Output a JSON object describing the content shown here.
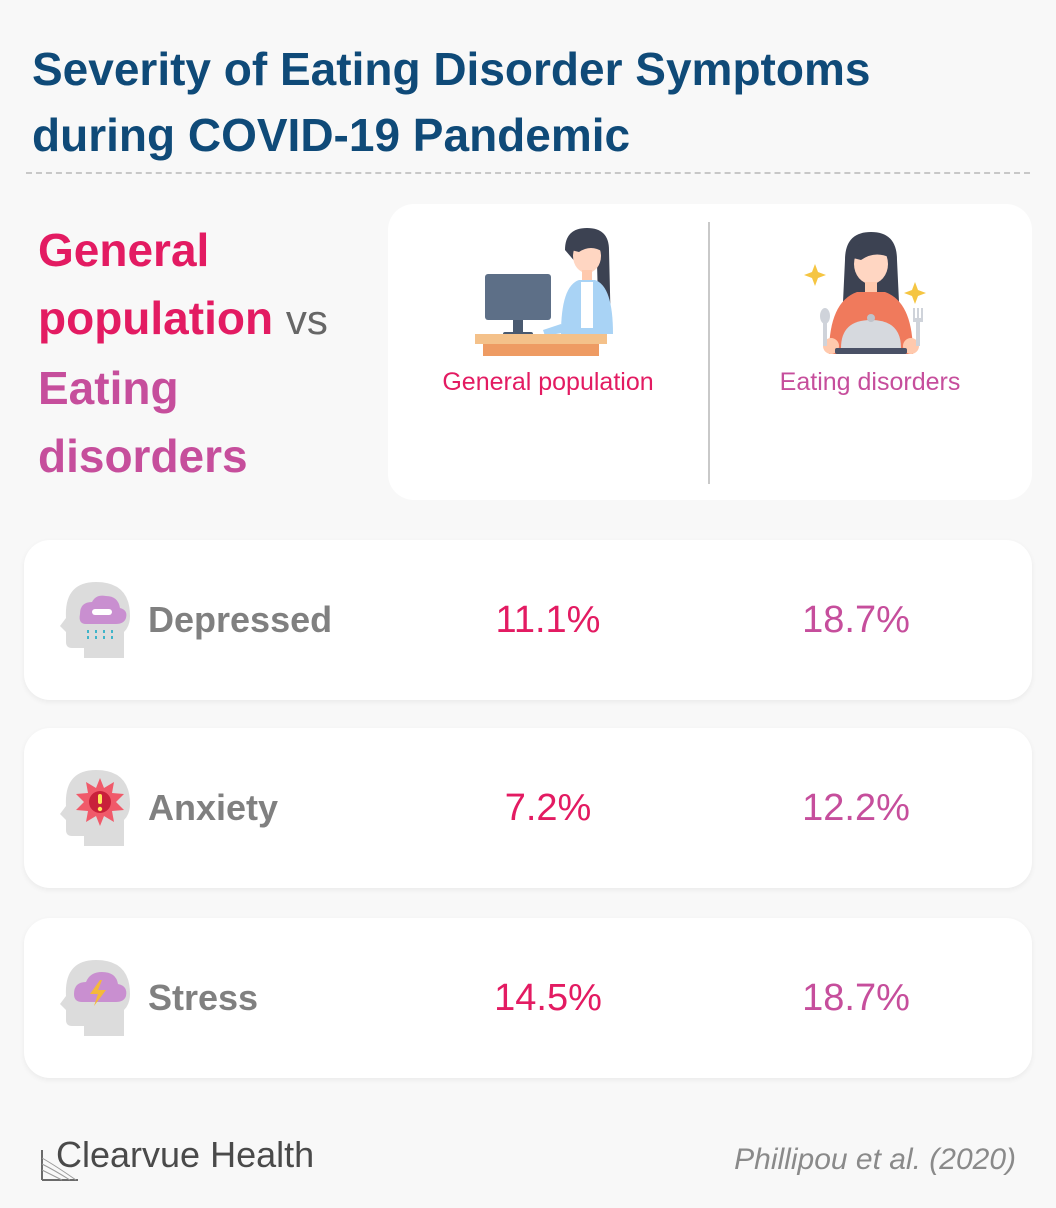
{
  "title": {
    "line1": "Severity of Eating Disorder Symptoms",
    "line2": "during COVID-19 Pandemic"
  },
  "headline": {
    "general": "General population",
    "vs": "vs",
    "eating": "Eating disorders"
  },
  "legend": {
    "general_label": "General population",
    "eating_label": "Eating disorders"
  },
  "rows": [
    {
      "label": "Depressed",
      "general": "11.1%",
      "eating": "18.7%",
      "icon": "head-rain-cloud-icon"
    },
    {
      "label": "Anxiety",
      "general": "7.2%",
      "eating": "12.2%",
      "icon": "head-alert-burst-icon"
    },
    {
      "label": "Stress",
      "general": "14.5%",
      "eating": "18.7%",
      "icon": "head-lightning-cloud-icon"
    }
  ],
  "footer": {
    "brand": "Clearvue Health",
    "citation": "Phillipou et al. (2020)"
  },
  "colors": {
    "title": "#0f4a78",
    "general": "#e31b62",
    "eating": "#c64e9c",
    "label_gray": "#808080"
  }
}
